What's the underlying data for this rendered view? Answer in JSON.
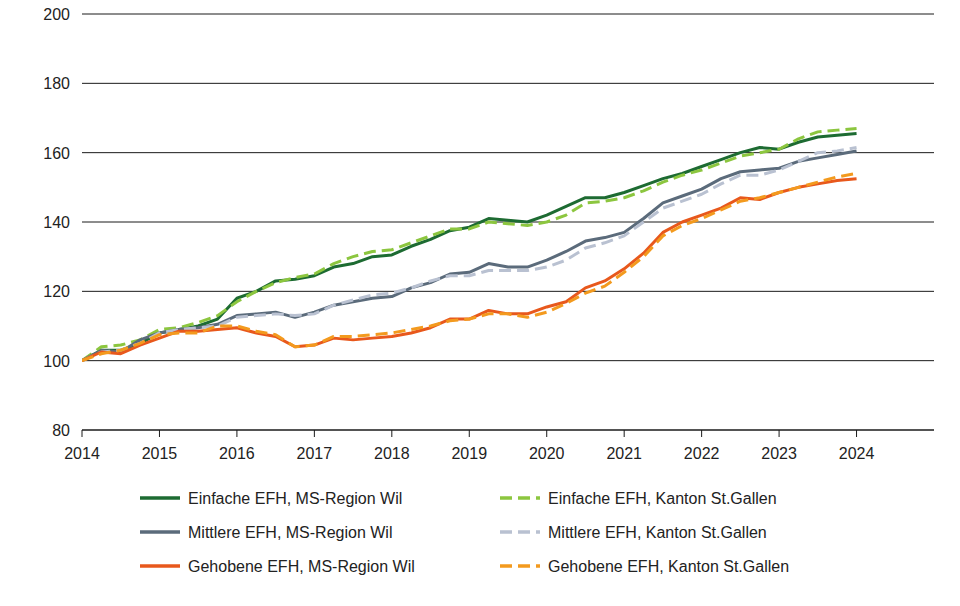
{
  "chart_data": {
    "type": "line",
    "x": [
      2014,
      2014.25,
      2014.5,
      2014.75,
      2015,
      2015.25,
      2015.5,
      2015.75,
      2016,
      2016.25,
      2016.5,
      2016.75,
      2017,
      2017.25,
      2017.5,
      2017.75,
      2018,
      2018.25,
      2018.5,
      2018.75,
      2019,
      2019.25,
      2019.5,
      2019.75,
      2020,
      2020.25,
      2020.5,
      2020.75,
      2021,
      2021.25,
      2021.5,
      2021.75,
      2022,
      2022.25,
      2022.5,
      2022.75,
      2023,
      2023.25,
      2023.5,
      2023.75,
      2024
    ],
    "xlim": [
      2014,
      2025
    ],
    "xticks": [
      2014,
      2015,
      2016,
      2017,
      2018,
      2019,
      2020,
      2021,
      2022,
      2023,
      2024
    ],
    "ylim": [
      80,
      200
    ],
    "yticks": [
      80,
      100,
      120,
      140,
      160,
      180,
      200
    ],
    "grid": true,
    "legend": "bottom",
    "series": [
      {
        "name": "Einfache EFH, MS-Region Wil",
        "color": "#1d6b32",
        "line_style": "solid",
        "values": [
          100,
          103,
          103,
          105,
          108,
          109,
          110,
          112,
          118,
          120,
          123,
          123.5,
          124.5,
          127,
          128,
          130,
          130.5,
          133,
          135,
          137.5,
          138.5,
          141,
          140.5,
          140,
          142,
          144.5,
          147,
          147,
          148.5,
          150.5,
          152.5,
          154,
          156,
          158,
          160,
          161.5,
          161,
          163,
          164.5,
          165,
          165.5
        ]
      },
      {
        "name": "Einfache EFH, Kanton St.Gallen",
        "color": "#8cc63f",
        "line_style": "dashed",
        "values": [
          100,
          104,
          104.5,
          106,
          109,
          109.5,
          111,
          113,
          117,
          120,
          122.5,
          124,
          125,
          128,
          130,
          131.5,
          132,
          134,
          136,
          138,
          138,
          140,
          139.5,
          139,
          140,
          142,
          145.5,
          146,
          147,
          149,
          151.5,
          153.5,
          155,
          157,
          159,
          160,
          161,
          164,
          166,
          166.5,
          167
        ]
      },
      {
        "name": "Mittlere EFH, MS-Region Wil",
        "color": "#5b6b7b",
        "line_style": "solid",
        "values": [
          100,
          103,
          102.5,
          106,
          108,
          109,
          109.5,
          110.5,
          113,
          113.5,
          114,
          112.5,
          114,
          116,
          117,
          118,
          118.5,
          121,
          122.5,
          125,
          125.5,
          128,
          127,
          127,
          129,
          131.5,
          134.5,
          135.5,
          137,
          141,
          145.5,
          147.5,
          149.5,
          152.5,
          154.5,
          155,
          155.5,
          157.5,
          158.5,
          159.5,
          160.5
        ]
      },
      {
        "name": "Mittlere EFH, Kanton St.Gallen",
        "color": "#b9c1d1",
        "line_style": "dashed",
        "values": [
          100,
          102.5,
          103,
          105,
          108,
          109,
          109.5,
          110,
          112.5,
          113,
          113.5,
          113,
          113.5,
          116,
          117.5,
          119,
          119.5,
          121,
          123,
          124.5,
          124.5,
          126,
          126,
          126,
          127,
          129,
          132.5,
          134,
          136,
          140,
          144,
          146,
          148,
          151,
          153.5,
          153.5,
          155,
          157.5,
          160,
          160.5,
          161.5
        ]
      },
      {
        "name": "Gehobene EFH, MS-Region Wil",
        "color": "#e8581c",
        "line_style": "solid",
        "values": [
          100,
          102.5,
          102,
          104.5,
          106.5,
          108.5,
          108.5,
          109,
          109.5,
          108,
          107,
          104,
          104.5,
          106.5,
          106,
          106.5,
          107,
          108,
          109.5,
          112,
          112,
          114.5,
          113.5,
          113.5,
          115.5,
          117,
          121,
          123,
          126.5,
          131,
          137,
          140,
          142,
          144,
          147,
          146.5,
          148.5,
          150,
          151,
          152,
          152.5
        ]
      },
      {
        "name": "Gehobene EFH, Kanton St.Gallen",
        "color": "#f39a1e",
        "line_style": "dashed",
        "values": [
          100,
          102,
          103,
          105,
          107.5,
          108,
          108,
          110,
          110,
          108.5,
          107.5,
          104,
          104.5,
          107,
          107,
          107.5,
          108,
          109,
          110,
          111.5,
          112,
          113.5,
          113.5,
          112.5,
          114,
          116.5,
          119.5,
          121.5,
          125.5,
          130,
          136,
          139,
          141,
          143.5,
          146,
          147,
          148.5,
          150,
          151.5,
          153,
          154
        ]
      }
    ]
  }
}
